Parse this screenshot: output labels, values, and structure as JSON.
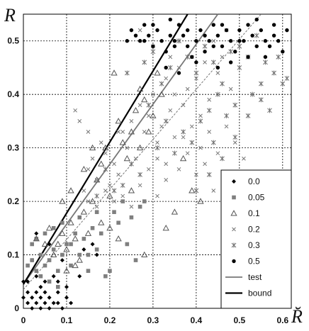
{
  "chart_data": {
    "type": "scatter",
    "title": "",
    "xlabel": "R̆",
    "ylabel": "R",
    "xlim": [
      0,
      0.62
    ],
    "ylim": [
      0,
      0.55
    ],
    "x_ticks": [
      "0",
      "0.1",
      "0.2",
      "0.3",
      "0.4",
      "0.5",
      "0.6"
    ],
    "y_ticks": [
      "0",
      "0.1",
      "0.2",
      "0.3",
      "0.4",
      "0.5"
    ],
    "grid": "dotted",
    "legend_placement": "bottom-right",
    "series": [
      {
        "name": "0.0",
        "marker": "diamond",
        "color": "#000000",
        "points": [
          [
            0.0,
            0.02
          ],
          [
            0.01,
            0.01
          ],
          [
            0.01,
            0.03
          ],
          [
            0.02,
            0.0
          ],
          [
            0.02,
            0.02
          ],
          [
            0.03,
            0.01
          ],
          [
            0.03,
            0.03
          ],
          [
            0.04,
            0.0
          ],
          [
            0.04,
            0.02
          ],
          [
            0.05,
            0.01
          ],
          [
            0.05,
            0.03
          ],
          [
            0.06,
            0.0
          ],
          [
            0.06,
            0.02
          ],
          [
            0.07,
            0.01
          ],
          [
            0.08,
            0.03
          ],
          [
            0.09,
            0.0
          ],
          [
            0.1,
            0.02
          ],
          [
            0.11,
            0.01
          ],
          [
            0.01,
            0.05
          ],
          [
            0.03,
            0.06
          ],
          [
            0.05,
            0.05
          ],
          [
            0.07,
            0.06
          ],
          [
            0.08,
            0.05
          ],
          [
            0.1,
            0.04
          ],
          [
            0.02,
            0.09
          ],
          [
            0.03,
            0.14
          ],
          [
            0.06,
            0.12
          ],
          [
            0.09,
            0.09
          ],
          [
            0.13,
            0.06
          ],
          [
            0.14,
            0.11
          ],
          [
            0.16,
            0.12
          ],
          [
            0.17,
            0.1
          ],
          [
            0.04,
            0.04
          ],
          [
            0.08,
            0.01
          ],
          [
            0.0,
            0.05
          ]
        ]
      },
      {
        "name": "0.05",
        "marker": "square",
        "color": "#7f7f7f",
        "points": [
          [
            0.01,
            0.08
          ],
          [
            0.02,
            0.09
          ],
          [
            0.03,
            0.07
          ],
          [
            0.04,
            0.1
          ],
          [
            0.05,
            0.08
          ],
          [
            0.06,
            0.09
          ],
          [
            0.07,
            0.11
          ],
          [
            0.08,
            0.07
          ],
          [
            0.09,
            0.1
          ],
          [
            0.1,
            0.12
          ],
          [
            0.11,
            0.08
          ],
          [
            0.12,
            0.14
          ],
          [
            0.13,
            0.1
          ],
          [
            0.14,
            0.13
          ],
          [
            0.15,
            0.07
          ],
          [
            0.16,
            0.15
          ],
          [
            0.17,
            0.11
          ],
          [
            0.18,
            0.14
          ],
          [
            0.19,
            0.06
          ],
          [
            0.2,
            0.07
          ],
          [
            0.21,
            0.18
          ],
          [
            0.22,
            0.16
          ],
          [
            0.23,
            0.2
          ],
          [
            0.24,
            0.12
          ],
          [
            0.25,
            0.17
          ],
          [
            0.26,
            0.09
          ],
          [
            0.27,
            0.19
          ],
          [
            0.28,
            0.2
          ],
          [
            0.03,
            0.13
          ],
          [
            0.05,
            0.14
          ],
          [
            0.07,
            0.15
          ],
          [
            0.09,
            0.16
          ],
          [
            0.11,
            0.12
          ],
          [
            0.13,
            0.17
          ],
          [
            0.15,
            0.1
          ],
          [
            0.17,
            0.18
          ],
          [
            0.06,
            0.05
          ],
          [
            0.08,
            0.04
          ],
          [
            0.02,
            0.12
          ],
          [
            0.04,
            0.06
          ]
        ]
      },
      {
        "name": "0.1",
        "marker": "triangle",
        "color": "#555555",
        "points": [
          [
            0.03,
            0.13
          ],
          [
            0.05,
            0.12
          ],
          [
            0.06,
            0.15
          ],
          [
            0.07,
            0.1
          ],
          [
            0.08,
            0.12
          ],
          [
            0.09,
            0.14
          ],
          [
            0.1,
            0.11
          ],
          [
            0.11,
            0.16
          ],
          [
            0.12,
            0.13
          ],
          [
            0.13,
            0.09
          ],
          [
            0.14,
            0.18
          ],
          [
            0.15,
            0.14
          ],
          [
            0.16,
            0.2
          ],
          [
            0.17,
            0.24
          ],
          [
            0.18,
            0.27
          ],
          [
            0.19,
            0.3
          ],
          [
            0.2,
            0.21
          ],
          [
            0.21,
            0.44
          ],
          [
            0.22,
            0.35
          ],
          [
            0.23,
            0.31
          ],
          [
            0.24,
            0.28
          ],
          [
            0.25,
            0.33
          ],
          [
            0.26,
            0.37
          ],
          [
            0.27,
            0.41
          ],
          [
            0.28,
            0.39
          ],
          [
            0.29,
            0.33
          ],
          [
            0.3,
            0.36
          ],
          [
            0.31,
            0.44
          ],
          [
            0.32,
            0.4
          ],
          [
            0.33,
            0.15
          ],
          [
            0.35,
            0.18
          ],
          [
            0.37,
            0.28
          ],
          [
            0.39,
            0.22
          ],
          [
            0.41,
            0.2
          ],
          [
            0.1,
            0.07
          ],
          [
            0.12,
            0.08
          ],
          [
            0.18,
            0.16
          ],
          [
            0.2,
            0.15
          ],
          [
            0.22,
            0.13
          ],
          [
            0.25,
            0.22
          ],
          [
            0.28,
            0.1
          ],
          [
            0.16,
            0.3
          ],
          [
            0.14,
            0.26
          ],
          [
            0.11,
            0.22
          ],
          [
            0.09,
            0.2
          ],
          [
            0.27,
            0.3
          ]
        ]
      },
      {
        "name": "0.2",
        "marker": "x",
        "color": "#777777",
        "points": [
          [
            0.14,
            0.22
          ],
          [
            0.15,
            0.26
          ],
          [
            0.16,
            0.28
          ],
          [
            0.17,
            0.24
          ],
          [
            0.18,
            0.31
          ],
          [
            0.19,
            0.29
          ],
          [
            0.2,
            0.23
          ],
          [
            0.21,
            0.27
          ],
          [
            0.22,
            0.25
          ],
          [
            0.23,
            0.33
          ],
          [
            0.24,
            0.3
          ],
          [
            0.25,
            0.35
          ],
          [
            0.26,
            0.28
          ],
          [
            0.27,
            0.38
          ],
          [
            0.28,
            0.33
          ],
          [
            0.29,
            0.36
          ],
          [
            0.3,
            0.4
          ],
          [
            0.31,
            0.31
          ],
          [
            0.32,
            0.34
          ],
          [
            0.33,
            0.43
          ],
          [
            0.34,
            0.37
          ],
          [
            0.35,
            0.4
          ],
          [
            0.36,
            0.45
          ],
          [
            0.37,
            0.32
          ],
          [
            0.38,
            0.41
          ],
          [
            0.39,
            0.47
          ],
          [
            0.4,
            0.43
          ],
          [
            0.41,
            0.36
          ],
          [
            0.42,
            0.46
          ],
          [
            0.43,
            0.39
          ],
          [
            0.44,
            0.5
          ],
          [
            0.45,
            0.44
          ],
          [
            0.46,
            0.47
          ],
          [
            0.47,
            0.52
          ],
          [
            0.48,
            0.41
          ],
          [
            0.13,
            0.17
          ],
          [
            0.15,
            0.2
          ],
          [
            0.17,
            0.19
          ],
          [
            0.19,
            0.22
          ],
          [
            0.21,
            0.2
          ],
          [
            0.23,
            0.21
          ],
          [
            0.25,
            0.19
          ],
          [
            0.27,
            0.23
          ],
          [
            0.29,
            0.26
          ],
          [
            0.31,
            0.28
          ],
          [
            0.33,
            0.27
          ],
          [
            0.35,
            0.32
          ],
          [
            0.37,
            0.38
          ],
          [
            0.39,
            0.34
          ],
          [
            0.41,
            0.3
          ],
          [
            0.43,
            0.33
          ],
          [
            0.45,
            0.29
          ],
          [
            0.47,
            0.34
          ],
          [
            0.49,
            0.31
          ],
          [
            0.51,
            0.28
          ],
          [
            0.27,
            0.52
          ],
          [
            0.3,
            0.49
          ],
          [
            0.34,
            0.47
          ],
          [
            0.22,
            0.33
          ],
          [
            0.12,
            0.37
          ],
          [
            0.13,
            0.35
          ],
          [
            0.15,
            0.33
          ],
          [
            0.36,
            0.26
          ],
          [
            0.38,
            0.29
          ],
          [
            0.4,
            0.25
          ],
          [
            0.42,
            0.27
          ],
          [
            0.44,
            0.22
          ],
          [
            0.33,
            0.24
          ],
          [
            0.31,
            0.21
          ]
        ]
      },
      {
        "name": "0.3",
        "marker": "asterisk",
        "color": "#6e6e6e",
        "points": [
          [
            0.24,
            0.44
          ],
          [
            0.28,
            0.46
          ],
          [
            0.3,
            0.48
          ],
          [
            0.32,
            0.42
          ],
          [
            0.34,
            0.45
          ],
          [
            0.36,
            0.5
          ],
          [
            0.38,
            0.47
          ],
          [
            0.4,
            0.44
          ],
          [
            0.42,
            0.49
          ],
          [
            0.44,
            0.46
          ],
          [
            0.46,
            0.42
          ],
          [
            0.48,
            0.48
          ],
          [
            0.5,
            0.45
          ],
          [
            0.52,
            0.47
          ],
          [
            0.54,
            0.51
          ],
          [
            0.56,
            0.46
          ],
          [
            0.58,
            0.44
          ],
          [
            0.6,
            0.42
          ],
          [
            0.59,
            0.47
          ],
          [
            0.57,
            0.37
          ],
          [
            0.55,
            0.42
          ],
          [
            0.53,
            0.4
          ],
          [
            0.49,
            0.38
          ],
          [
            0.47,
            0.36
          ],
          [
            0.45,
            0.4
          ],
          [
            0.43,
            0.37
          ],
          [
            0.41,
            0.35
          ],
          [
            0.39,
            0.31
          ],
          [
            0.37,
            0.33
          ],
          [
            0.35,
            0.29
          ],
          [
            0.33,
            0.35
          ],
          [
            0.31,
            0.3
          ],
          [
            0.29,
            0.38
          ],
          [
            0.27,
            0.25
          ],
          [
            0.25,
            0.27
          ],
          [
            0.23,
            0.23
          ],
          [
            0.21,
            0.22
          ],
          [
            0.19,
            0.26
          ],
          [
            0.17,
            0.21
          ],
          [
            0.4,
            0.22
          ],
          [
            0.43,
            0.25
          ],
          [
            0.46,
            0.28
          ],
          [
            0.49,
            0.32
          ],
          [
            0.52,
            0.36
          ],
          [
            0.55,
            0.39
          ],
          [
            0.5,
            0.49
          ],
          [
            0.61,
            0.43
          ],
          [
            0.44,
            0.31
          ]
        ]
      },
      {
        "name": "0.5",
        "marker": "circle",
        "color": "#000000",
        "points": [
          [
            0.24,
            0.5
          ],
          [
            0.25,
            0.52
          ],
          [
            0.26,
            0.51
          ],
          [
            0.27,
            0.5
          ],
          [
            0.28,
            0.53
          ],
          [
            0.29,
            0.51
          ],
          [
            0.3,
            0.49
          ],
          [
            0.31,
            0.52
          ],
          [
            0.32,
            0.5
          ],
          [
            0.33,
            0.48
          ],
          [
            0.34,
            0.51
          ],
          [
            0.35,
            0.49
          ],
          [
            0.36,
            0.53
          ],
          [
            0.37,
            0.51
          ],
          [
            0.38,
            0.49
          ],
          [
            0.39,
            0.47
          ],
          [
            0.4,
            0.5
          ],
          [
            0.41,
            0.52
          ],
          [
            0.42,
            0.48
          ],
          [
            0.43,
            0.5
          ],
          [
            0.44,
            0.53
          ],
          [
            0.45,
            0.51
          ],
          [
            0.46,
            0.49
          ],
          [
            0.47,
            0.52
          ],
          [
            0.48,
            0.5
          ],
          [
            0.49,
            0.48
          ],
          [
            0.5,
            0.52
          ],
          [
            0.51,
            0.5
          ],
          [
            0.52,
            0.53
          ],
          [
            0.53,
            0.51
          ],
          [
            0.54,
            0.54
          ],
          [
            0.55,
            0.52
          ],
          [
            0.56,
            0.5
          ],
          [
            0.57,
            0.49
          ],
          [
            0.58,
            0.51
          ],
          [
            0.59,
            0.5
          ],
          [
            0.6,
            0.48
          ],
          [
            0.61,
            0.52
          ],
          [
            0.3,
            0.53
          ],
          [
            0.34,
            0.54
          ],
          [
            0.38,
            0.52
          ],
          [
            0.42,
            0.51
          ],
          [
            0.46,
            0.53
          ],
          [
            0.5,
            0.5
          ],
          [
            0.33,
            0.45
          ],
          [
            0.36,
            0.44
          ],
          [
            0.4,
            0.46
          ],
          [
            0.45,
            0.45
          ],
          [
            0.48,
            0.46
          ],
          [
            0.52,
            0.47
          ],
          [
            0.56,
            0.47
          ],
          [
            0.35,
            0.5
          ],
          [
            0.44,
            0.49
          ],
          [
            0.54,
            0.49
          ],
          [
            0.58,
            0.53
          ],
          [
            0.28,
            0.5
          ]
        ]
      }
    ],
    "lines": [
      {
        "name": "test",
        "style": "solid",
        "color": "#777777",
        "width": 1.8,
        "points": [
          [
            0.0,
            0.045
          ],
          [
            0.45,
            0.55
          ]
        ]
      },
      {
        "name": "bound",
        "style": "solid",
        "color": "#000000",
        "width": 2.2,
        "points": [
          [
            0.0,
            0.045
          ],
          [
            0.38,
            0.55
          ]
        ]
      },
      {
        "name": "",
        "style": "dashed",
        "color": "#777777",
        "width": 1.0,
        "points": [
          [
            0.0,
            0.035
          ],
          [
            0.55,
            0.55
          ]
        ]
      }
    ]
  }
}
